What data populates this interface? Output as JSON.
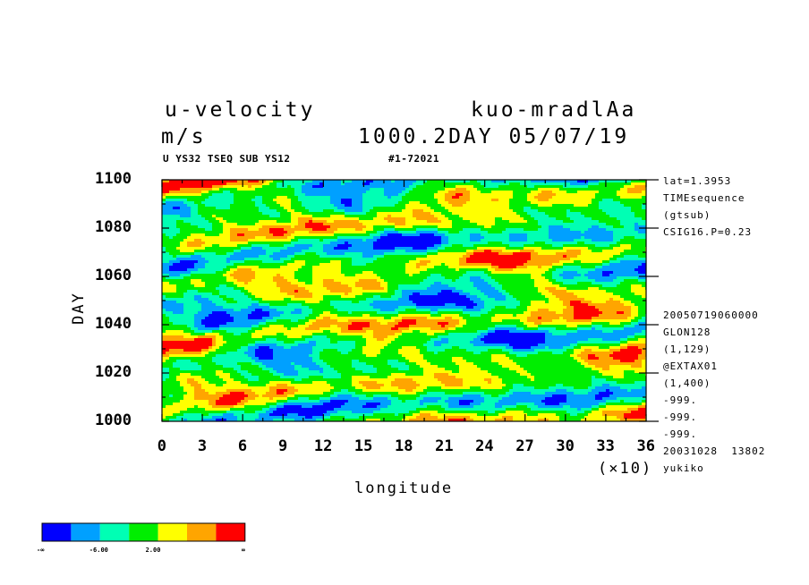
{
  "header": {
    "title_left": "u-velocity",
    "title_right": "kuo-mradlAa",
    "units": "m/s",
    "time_info": "1000.2DAY 05/07/19",
    "subtitle_left": "U YS32 TSEQ SUB YS12",
    "subtitle_right": "#1-72021"
  },
  "side_info_top": [
    "lat=1.3953",
    "TIMEsequence",
    "(gtsub)",
    "CSIG16.P=0.23"
  ],
  "side_info_bottom": [
    "20050719060000",
    "GLON128",
    "(1,129)",
    "@EXTAX01",
    "(1,400)",
    "-999.",
    "-999.",
    "-999.",
    "20031028  13802",
    "yukiko"
  ],
  "chart_data": {
    "type": "heatmap",
    "xlabel": "longitude",
    "ylabel": "DAY",
    "x_multiplier_label": "(×10)",
    "xlim": [
      0,
      36
    ],
    "ylim": [
      1000,
      1100
    ],
    "x_ticks": [
      "0",
      "3",
      "6",
      "9",
      "12",
      "15",
      "18",
      "21",
      "24",
      "27",
      "30",
      "33",
      "36"
    ],
    "y_ticks": [
      "1000",
      "1020",
      "1040",
      "1060",
      "1080",
      "1100"
    ],
    "colorbar": {
      "colors": [
        "#0000ff",
        "#00a0ff",
        "#00ffb4",
        "#00ee00",
        "#ffff00",
        "#ffa500",
        "#ff0000"
      ],
      "labels": [
        "-∞",
        "-6.00",
        "2.00",
        "∞"
      ]
    }
  }
}
